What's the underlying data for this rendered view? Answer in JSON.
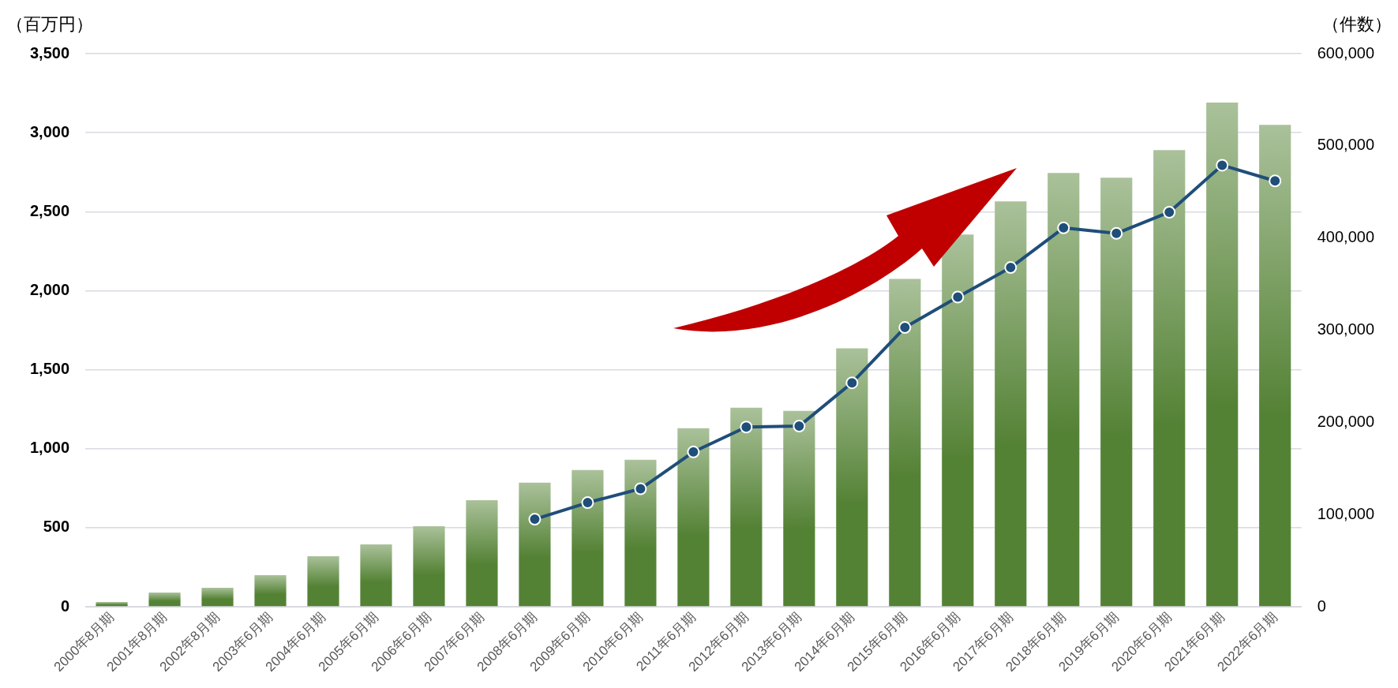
{
  "chart_data": {
    "type": "bar",
    "categories": [
      "2000年8月期",
      "2001年8月期",
      "2002年8月期",
      "2003年6月期",
      "2004年6月期",
      "2005年6月期",
      "2006年6月期",
      "2007年6月期",
      "2008年6月期",
      "2009年6月期",
      "2010年6月期",
      "2011年6月期",
      "2012年6月期",
      "2013年6月期",
      "2014年6月期",
      "2015年6月期",
      "2016年6月期",
      "2017年6月期",
      "2018年6月期",
      "2019年6月期",
      "2020年6月期",
      "2021年6月期",
      "2022年6月期"
    ],
    "series": [
      {
        "color": "#548235",
        "values": [
          30,
          90,
          120,
          200,
          320,
          395,
          510,
          675,
          785,
          865,
          930,
          1130,
          1260,
          1240,
          1635,
          2075,
          2355,
          2565,
          2745,
          2715,
          2890,
          3190,
          3050
        ]
      },
      {
        "type": "line",
        "axis": "y2",
        "color": "#1f4e79",
        "marker": "circle",
        "values": [
          null,
          null,
          null,
          null,
          null,
          null,
          null,
          null,
          95000,
          113000,
          128000,
          168000,
          195000,
          196000,
          243000,
          303000,
          336000,
          368000,
          411000,
          405000,
          428000,
          479000,
          462000
        ]
      }
    ],
    "ylabel": "（百万円）",
    "y2label": "（件数）",
    "ylim": [
      0,
      3500
    ],
    "yticks": [
      {
        "value": 0,
        "label": "0"
      },
      {
        "value": 500,
        "label": "500"
      },
      {
        "value": 1000,
        "label": "1,000"
      },
      {
        "value": 1500,
        "label": "1,500"
      },
      {
        "value": 2000,
        "label": "2,000"
      },
      {
        "value": 2500,
        "label": "2,500"
      },
      {
        "value": 3000,
        "label": "3,000"
      },
      {
        "value": 3500,
        "label": "3,500"
      }
    ],
    "y2lim": [
      0,
      600000
    ],
    "y2ticks": [
      {
        "value": 0,
        "label": "0"
      },
      {
        "value": 100000,
        "label": "100,000"
      },
      {
        "value": 200000,
        "label": "200,000"
      },
      {
        "value": 300000,
        "label": "300,000"
      },
      {
        "value": 400000,
        "label": "400,000"
      },
      {
        "value": 500000,
        "label": "500,000"
      },
      {
        "value": 600000,
        "label": "600,000"
      }
    ],
    "grid": "y",
    "legend": false
  }
}
